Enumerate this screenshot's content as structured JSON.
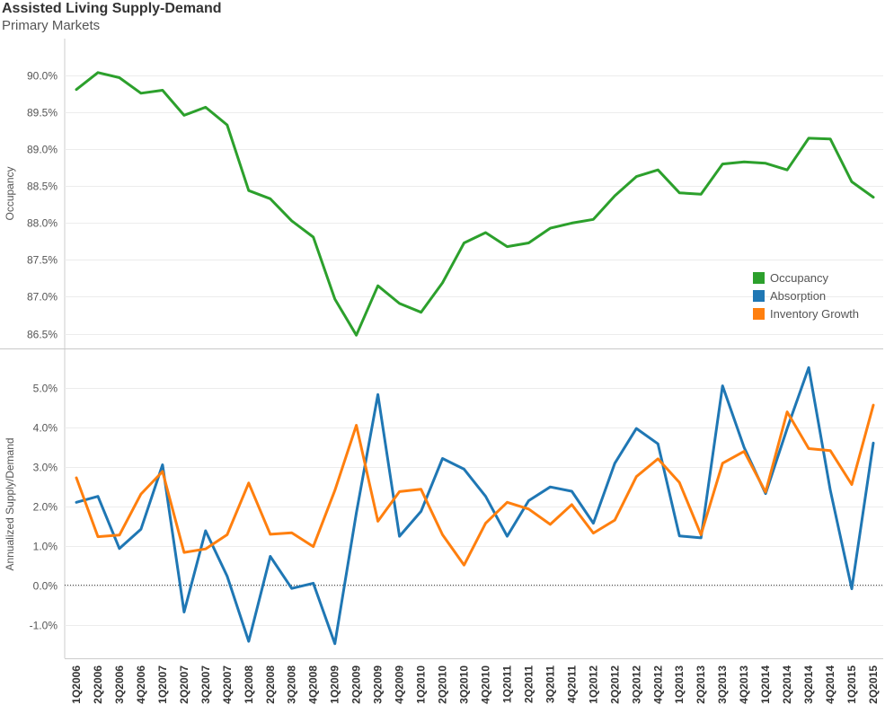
{
  "header": {
    "title": "Assisted Living Supply-Demand",
    "subtitle": "Primary Markets"
  },
  "colors": {
    "occupancy": "#2ca02c",
    "absorption": "#1f77b4",
    "inventory_growth": "#ff7f0e"
  },
  "chart_data": [
    {
      "type": "line",
      "ylabel": "Occupancy",
      "ylim": [
        86.3,
        90.5
      ],
      "yticks": [
        "90.0%",
        "89.5%",
        "89.0%",
        "88.5%",
        "88.0%",
        "87.5%",
        "87.0%",
        "86.5%"
      ],
      "ytick_values": [
        90.0,
        89.5,
        89.0,
        88.5,
        88.0,
        87.5,
        87.0,
        86.5
      ],
      "categories": [
        "1Q2006",
        "2Q2006",
        "3Q2006",
        "4Q2006",
        "1Q2007",
        "2Q2007",
        "3Q2007",
        "4Q2007",
        "1Q2008",
        "2Q2008",
        "3Q2008",
        "4Q2008",
        "1Q2009",
        "2Q2009",
        "3Q2009",
        "4Q2009",
        "1Q2010",
        "2Q2010",
        "3Q2010",
        "4Q2010",
        "1Q2011",
        "2Q2011",
        "3Q2011",
        "4Q2011",
        "1Q2012",
        "2Q2012",
        "3Q2012",
        "4Q2012",
        "1Q2013",
        "2Q2013",
        "3Q2013",
        "4Q2013",
        "1Q2014",
        "2Q2014",
        "3Q2014",
        "4Q2014",
        "1Q2015",
        "2Q2015"
      ],
      "series": [
        {
          "name": "Occupancy",
          "color": "#2ca02c",
          "values": [
            89.81,
            90.04,
            89.97,
            89.76,
            89.8,
            89.46,
            89.57,
            89.33,
            88.44,
            88.33,
            88.03,
            87.81,
            86.97,
            86.48,
            87.15,
            86.91,
            86.79,
            87.19,
            87.73,
            87.87,
            87.68,
            87.73,
            87.93,
            88.0,
            88.05,
            88.37,
            88.63,
            88.72,
            88.41,
            88.39,
            88.8,
            88.83,
            88.81,
            88.72,
            89.15,
            89.14,
            88.56,
            88.35
          ]
        }
      ],
      "legend": {
        "position": "bottom-right",
        "entries": [
          {
            "label": "Occupancy",
            "color": "#2ca02c"
          },
          {
            "label": "Absorption",
            "color": "#1f77b4"
          },
          {
            "label": "Inventory Growth",
            "color": "#ff7f0e"
          }
        ]
      },
      "grid": true
    },
    {
      "type": "line",
      "ylabel": "Annualized Supply/Demand",
      "ylim": [
        -1.85,
        5.95
      ],
      "yticks": [
        "5.0%",
        "4.0%",
        "3.0%",
        "2.0%",
        "1.0%",
        "0.0%",
        "-1.0%"
      ],
      "ytick_values": [
        5.0,
        4.0,
        3.0,
        2.0,
        1.0,
        0.0,
        -1.0
      ],
      "zero_line": true,
      "categories": [
        "1Q2006",
        "2Q2006",
        "3Q2006",
        "4Q2006",
        "1Q2007",
        "2Q2007",
        "3Q2007",
        "4Q2007",
        "1Q2008",
        "2Q2008",
        "3Q2008",
        "4Q2008",
        "1Q2009",
        "2Q2009",
        "3Q2009",
        "4Q2009",
        "1Q2010",
        "2Q2010",
        "3Q2010",
        "4Q2010",
        "1Q2011",
        "2Q2011",
        "3Q2011",
        "4Q2011",
        "1Q2012",
        "2Q2012",
        "3Q2012",
        "4Q2012",
        "1Q2013",
        "2Q2013",
        "3Q2013",
        "4Q2013",
        "1Q2014",
        "2Q2014",
        "3Q2014",
        "4Q2014",
        "1Q2015",
        "2Q2015"
      ],
      "series": [
        {
          "name": "Absorption",
          "color": "#1f77b4",
          "values": [
            2.1,
            2.25,
            0.93,
            1.42,
            3.05,
            -0.68,
            1.38,
            0.23,
            -1.42,
            0.73,
            -0.08,
            0.05,
            -1.48,
            1.83,
            4.83,
            1.24,
            1.87,
            3.21,
            2.94,
            2.25,
            1.24,
            2.14,
            2.49,
            2.38,
            1.57,
            3.09,
            3.97,
            3.58,
            1.25,
            1.2,
            5.05,
            3.49,
            2.32,
            3.97,
            5.51,
            2.41,
            -0.09,
            3.6
          ]
        },
        {
          "name": "Inventory Growth",
          "color": "#ff7f0e",
          "values": [
            2.72,
            1.23,
            1.27,
            2.31,
            2.88,
            0.83,
            0.92,
            1.28,
            2.59,
            1.29,
            1.33,
            0.98,
            2.4,
            4.05,
            1.62,
            2.37,
            2.43,
            1.28,
            0.51,
            1.57,
            2.1,
            1.93,
            1.54,
            2.04,
            1.32,
            1.65,
            2.75,
            3.2,
            2.6,
            1.28,
            3.09,
            3.39,
            2.36,
            4.39,
            3.46,
            3.41,
            2.55,
            4.56
          ]
        }
      ],
      "grid": true
    }
  ]
}
